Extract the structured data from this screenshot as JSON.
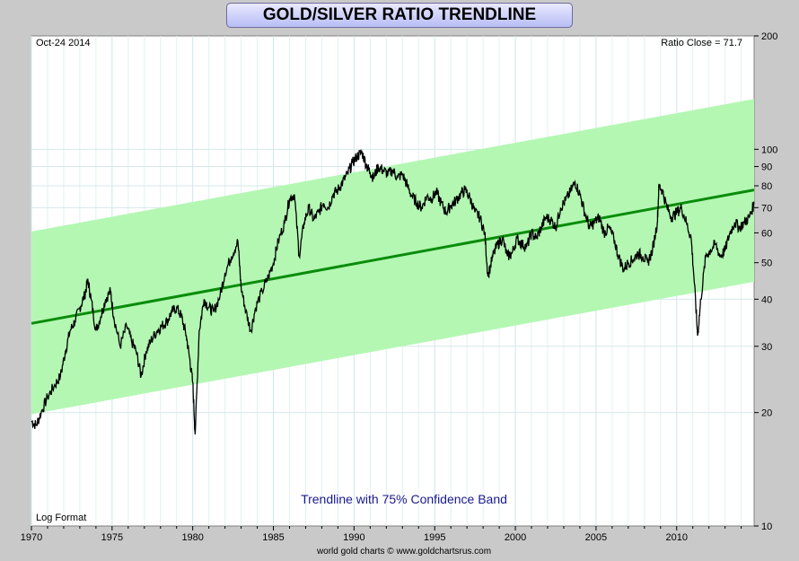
{
  "chart_data": {
    "type": "line",
    "title": "GOLD/SILVER RATIO TRENDLINE",
    "date_label": "Oct-24  2014",
    "ratio_close_label": "Ratio Close = 71.7",
    "scale_label": "Log Format",
    "caption": "Trendline with 75% Confidence Band",
    "credit": "world gold charts © www.goldchartsrus.com",
    "y_scale": "log",
    "ylim": [
      10,
      200
    ],
    "xlim": [
      1970.0,
      2014.8
    ],
    "y_ticks": [
      10,
      20,
      30,
      40,
      50,
      60,
      70,
      80,
      90,
      100,
      200
    ],
    "x_ticks": [
      1970,
      1975,
      1980,
      1985,
      1990,
      1995,
      2000,
      2005,
      2010
    ],
    "grid": true,
    "colors": {
      "band": "#b3f7b3",
      "trendline": "#0a8c0a",
      "series": "#000000",
      "caption": "#1a1a8c",
      "title_bg": "#c3c7f7"
    },
    "trendline": {
      "x": [
        1970.0,
        2014.8
      ],
      "y": [
        34.5,
        78.0
      ]
    },
    "confidence_band": {
      "x": [
        1970.0,
        2014.8
      ],
      "upper": [
        60.5,
        136.0
      ],
      "lower": [
        19.8,
        44.5
      ]
    },
    "series": [
      {
        "x": [
          1970.0,
          1970.3,
          1970.6,
          1971.0,
          1971.4,
          1971.8,
          1972.1,
          1972.4,
          1972.7,
          1973.0,
          1973.3,
          1973.5,
          1973.7,
          1974.0,
          1974.3,
          1974.6,
          1974.9,
          1975.1,
          1975.5,
          1975.9,
          1976.2,
          1976.5,
          1976.8,
          1977.1,
          1977.4,
          1977.8,
          1978.1,
          1978.4,
          1978.7,
          1979.0,
          1979.3,
          1979.6,
          1979.8,
          1980.0,
          1980.15,
          1980.4,
          1980.7,
          1981.0,
          1981.3,
          1981.7,
          1982.0,
          1982.4,
          1982.8,
          1983.0,
          1983.3,
          1983.6,
          1983.9,
          1984.3,
          1984.7,
          1985.0,
          1985.3,
          1985.7,
          1986.0,
          1986.3,
          1986.6,
          1986.9,
          1987.2,
          1987.5,
          1987.8,
          1988.1,
          1988.4,
          1988.7,
          1989.0,
          1989.3,
          1989.6,
          1989.9,
          1990.2,
          1990.5,
          1990.8,
          1991.0,
          1991.2,
          1991.5,
          1991.8,
          1992.1,
          1992.4,
          1992.7,
          1993.0,
          1993.3,
          1993.6,
          1993.9,
          1994.2,
          1994.5,
          1994.8,
          1995.1,
          1995.4,
          1995.7,
          1996.0,
          1996.3,
          1996.6,
          1996.9,
          1997.2,
          1997.5,
          1997.8,
          1998.1,
          1998.3,
          1998.6,
          1998.9,
          1999.2,
          1999.5,
          1999.8,
          2000.1,
          2000.4,
          2000.7,
          2001.0,
          2001.3,
          2001.6,
          2001.9,
          2002.2,
          2002.5,
          2002.8,
          2003.1,
          2003.4,
          2003.7,
          2004.0,
          2004.3,
          2004.6,
          2004.9,
          2005.2,
          2005.5,
          2005.8,
          2006.1,
          2006.4,
          2006.7,
          2007.0,
          2007.3,
          2007.6,
          2007.9,
          2008.2,
          2008.5,
          2008.8,
          2008.9,
          2009.1,
          2009.4,
          2009.7,
          2010.0,
          2010.3,
          2010.6,
          2010.9,
          2011.1,
          2011.3,
          2011.5,
          2011.8,
          2012.1,
          2012.4,
          2012.7,
          2013.0,
          2013.3,
          2013.6,
          2013.9,
          2014.2,
          2014.5,
          2014.8
        ],
        "values": [
          19.0,
          18.5,
          20.0,
          22.0,
          23.5,
          25.0,
          29.0,
          33.0,
          35.0,
          38.0,
          41.0,
          45.0,
          40.0,
          33.0,
          36.0,
          40.0,
          42.0,
          36.0,
          30.0,
          34.0,
          31.0,
          29.0,
          25.0,
          29.0,
          31.0,
          33.0,
          34.0,
          35.0,
          37.0,
          38.0,
          36.0,
          32.0,
          28.0,
          24.0,
          17.5,
          33.0,
          40.0,
          38.0,
          37.0,
          41.0,
          47.0,
          52.0,
          57.0,
          43.0,
          37.0,
          33.0,
          38.0,
          42.0,
          46.0,
          50.0,
          57.0,
          64.0,
          74.0,
          76.0,
          52.0,
          64.0,
          70.0,
          65.0,
          68.0,
          72.0,
          70.0,
          76.0,
          78.0,
          82.0,
          86.0,
          92.0,
          96.0,
          98.0,
          90.0,
          87.0,
          84.0,
          90.0,
          88.0,
          86.0,
          88.0,
          84.0,
          86.0,
          80.0,
          75.0,
          72.0,
          70.0,
          75.0,
          74.0,
          77.0,
          72.0,
          68.0,
          71.0,
          73.0,
          76.0,
          78.0,
          74.0,
          68.0,
          66.0,
          60.0,
          46.0,
          52.0,
          56.0,
          58.0,
          52.0,
          53.0,
          58.0,
          56.0,
          55.0,
          60.0,
          58.0,
          62.0,
          66.0,
          65.0,
          62.0,
          70.0,
          73.0,
          77.0,
          82.0,
          76.0,
          68.0,
          62.0,
          64.0,
          66.0,
          60.0,
          62.0,
          58.0,
          52.0,
          48.0,
          50.0,
          51.0,
          53.0,
          52.0,
          50.0,
          54.0,
          64.0,
          80.0,
          78.0,
          70.0,
          66.0,
          68.0,
          70.0,
          64.0,
          58.0,
          44.0,
          32.0,
          40.0,
          52.0,
          54.0,
          56.0,
          52.0,
          54.0,
          60.0,
          64.0,
          62.0,
          64.0,
          66.0,
          71.7
        ]
      }
    ]
  }
}
